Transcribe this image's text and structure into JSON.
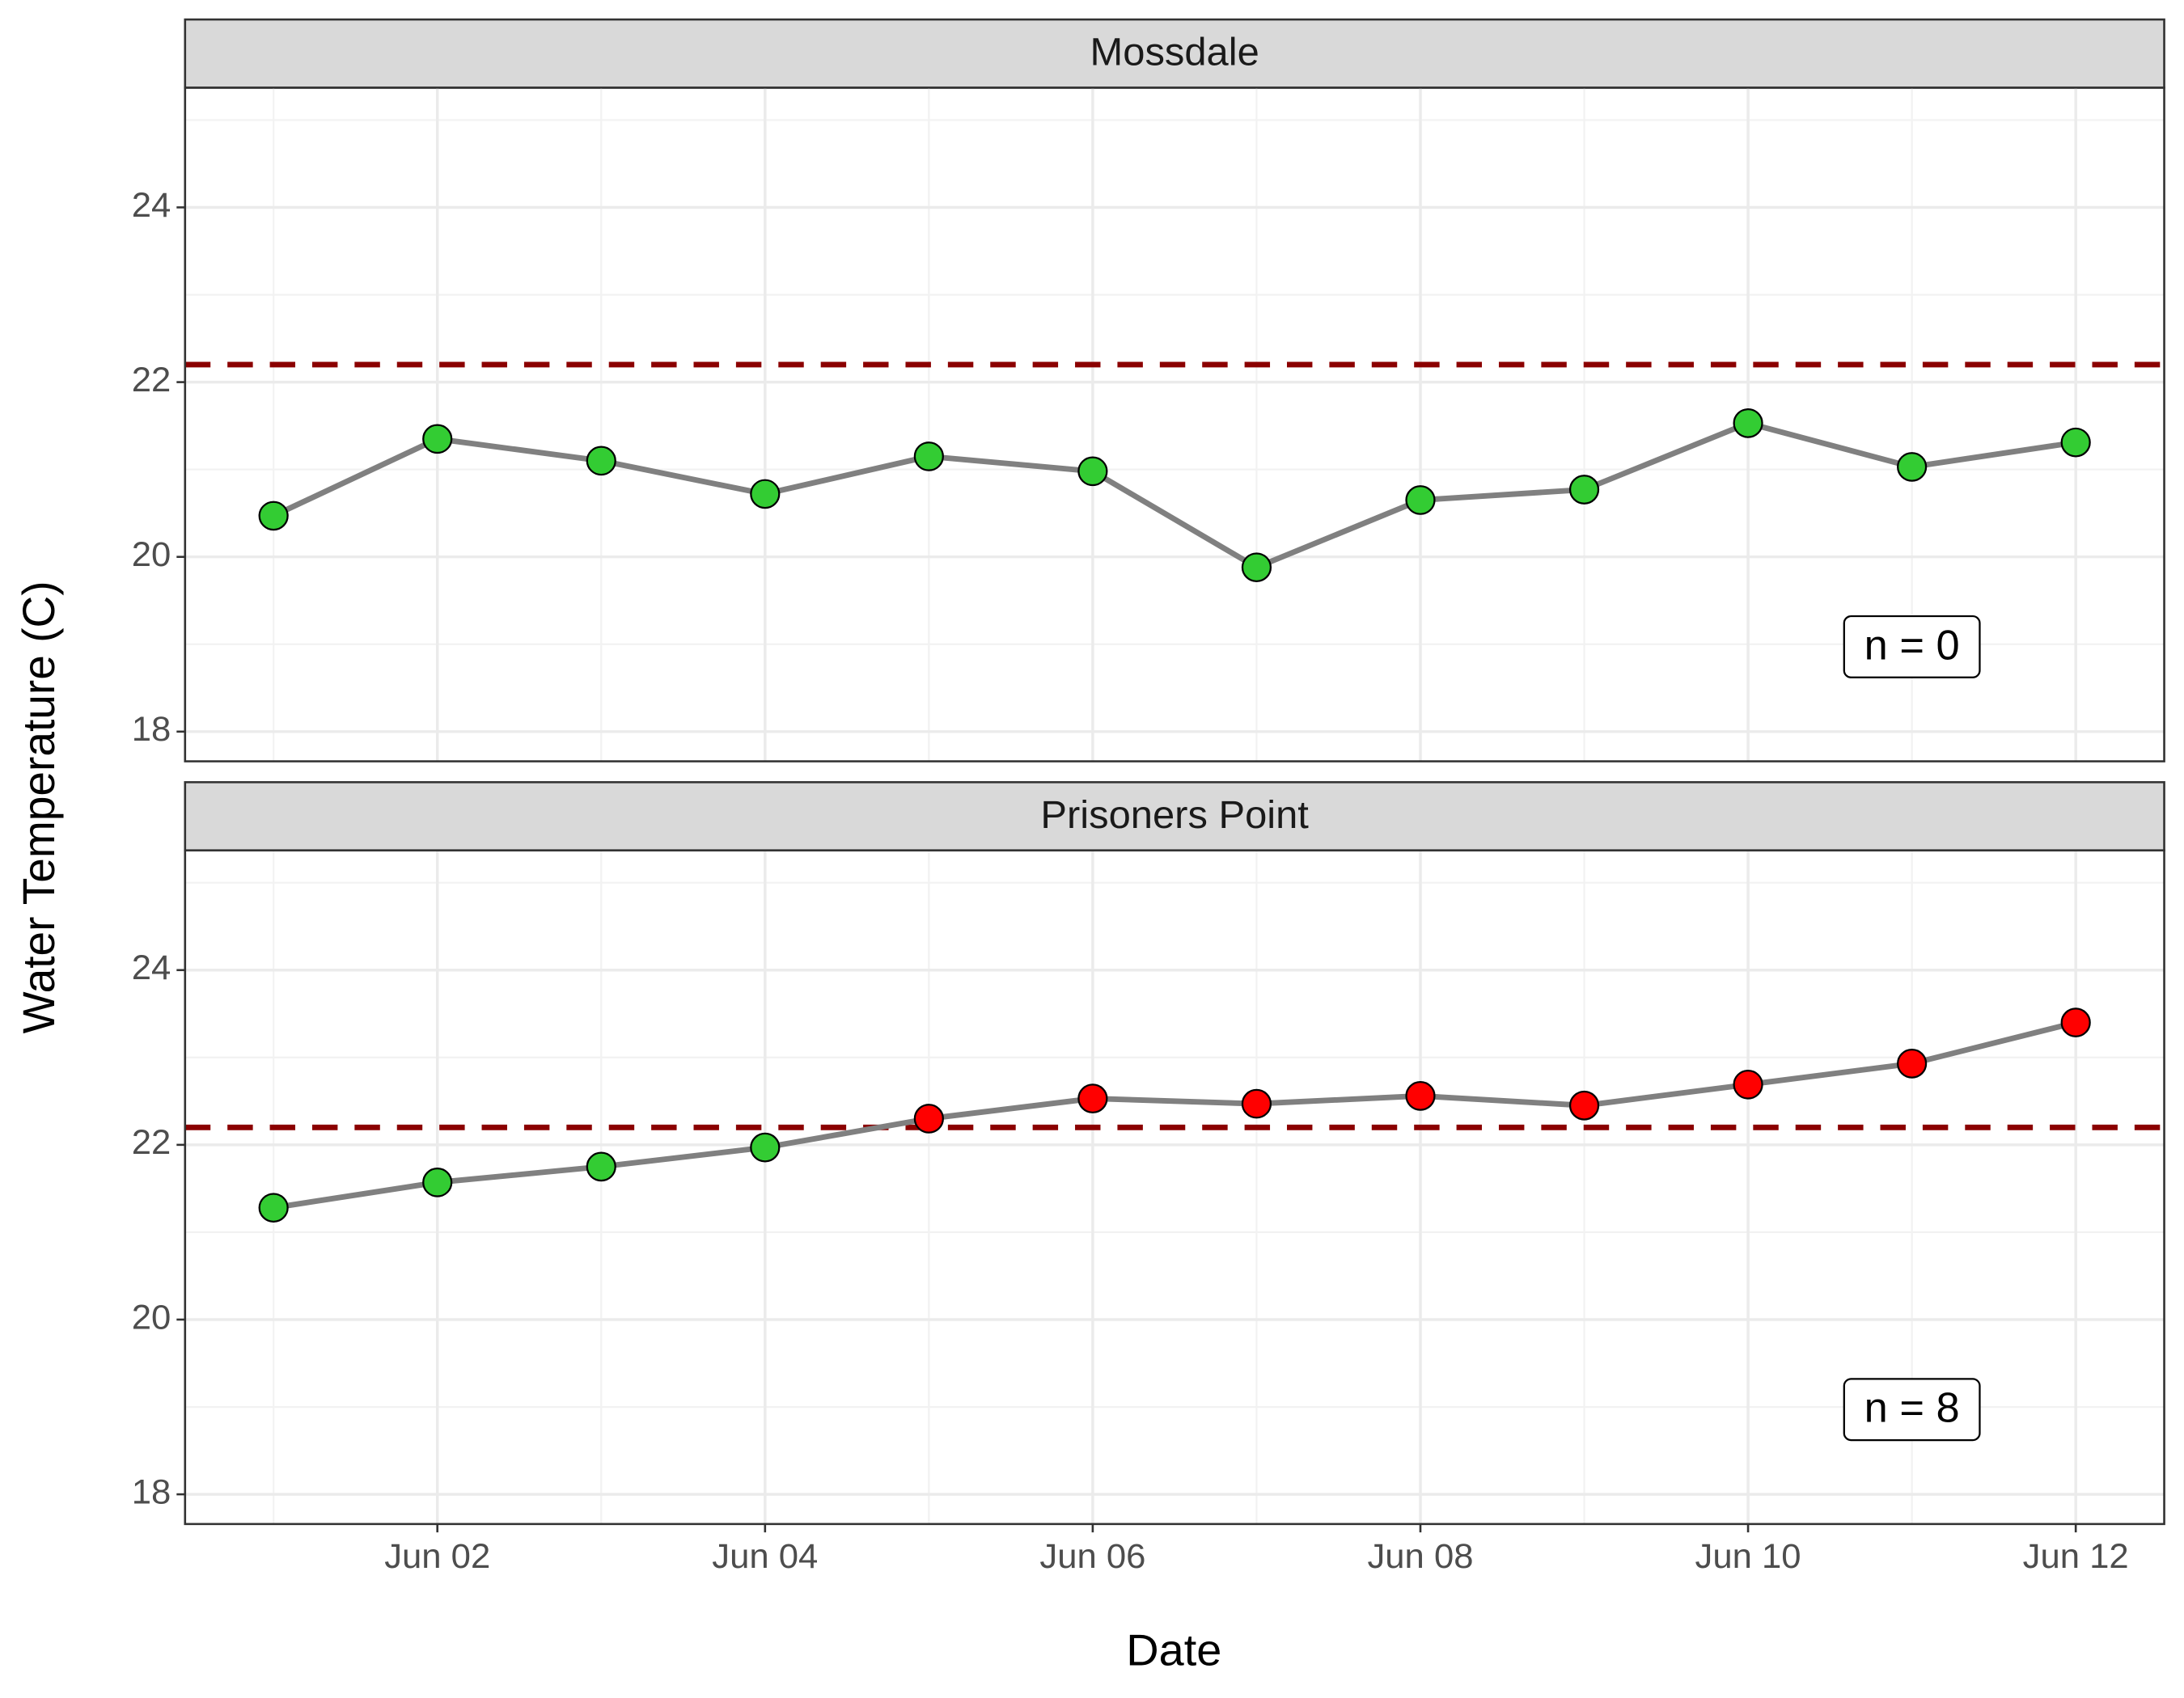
{
  "x_label": "Date",
  "y_label": "Water Temperature (C)",
  "chart_data": [
    {
      "type": "line",
      "title": "Mossdale",
      "x": [
        "Jun 01",
        "Jun 02",
        "Jun 03",
        "Jun 04",
        "Jun 05",
        "Jun 06",
        "Jun 07",
        "Jun 08",
        "Jun 09",
        "Jun 10",
        "Jun 11",
        "Jun 12"
      ],
      "series": [
        {
          "color": "#808080",
          "values": [
            20.47,
            21.35,
            21.1,
            20.72,
            21.15,
            20.98,
            19.88,
            20.65,
            20.77,
            21.53,
            21.03,
            21.31
          ]
        }
      ],
      "threshold": 22.2,
      "threshold_color": "#8b0000",
      "above_color": "#ff0000",
      "below_color": "#33cc33",
      "annotation": "n = 0",
      "ylim": [
        17.66,
        25.37
      ],
      "yticks": [
        18,
        20,
        22,
        24
      ],
      "xticks": [
        "Jun 02",
        "Jun 04",
        "Jun 06",
        "Jun 08",
        "Jun 10",
        "Jun 12"
      ],
      "grid": true
    },
    {
      "type": "line",
      "title": "Prisoners Point",
      "x": [
        "Jun 01",
        "Jun 02",
        "Jun 03",
        "Jun 04",
        "Jun 05",
        "Jun 06",
        "Jun 07",
        "Jun 08",
        "Jun 09",
        "Jun 10",
        "Jun 11",
        "Jun 12"
      ],
      "series": [
        {
          "color": "#808080",
          "values": [
            21.28,
            21.57,
            21.75,
            21.97,
            22.3,
            22.53,
            22.47,
            22.56,
            22.45,
            22.69,
            22.93,
            23.4
          ]
        }
      ],
      "threshold": 22.2,
      "threshold_color": "#8b0000",
      "above_color": "#ff0000",
      "below_color": "#33cc33",
      "annotation": "n = 8",
      "ylim": [
        17.66,
        25.37
      ],
      "yticks": [
        18,
        20,
        22,
        24
      ],
      "xticks": [
        "Jun 02",
        "Jun 04",
        "Jun 06",
        "Jun 08",
        "Jun 10",
        "Jun 12"
      ],
      "grid": true
    }
  ]
}
